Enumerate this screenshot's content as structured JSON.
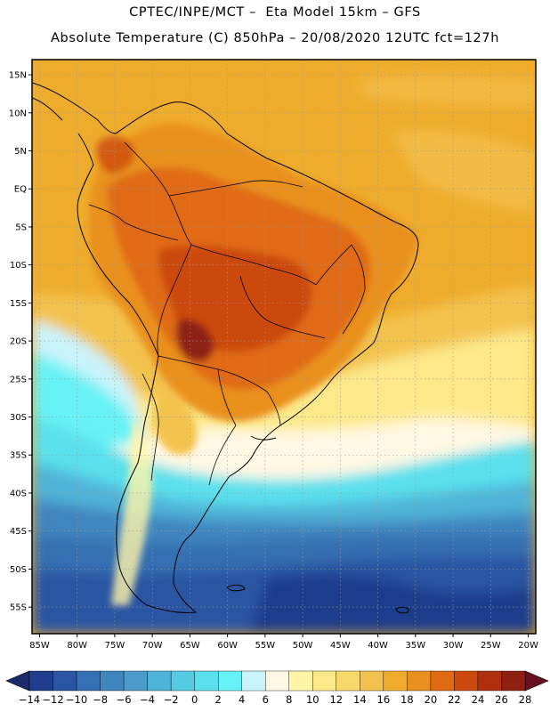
{
  "title_line1": "CPTEC/INPE/MCT –  Eta Model 15km – GFS",
  "title_line2": "Absolute Temperature (C) 850hPa – 20/08/2020 12UTC fct=127h",
  "map": {
    "lon_range": [
      -86,
      -19
    ],
    "lat_range": [
      -58.5,
      17
    ],
    "lon_ticks": [
      {
        "v": -85,
        "label": "85W"
      },
      {
        "v": -80,
        "label": "80W"
      },
      {
        "v": -75,
        "label": "75W"
      },
      {
        "v": -70,
        "label": "70W"
      },
      {
        "v": -65,
        "label": "65W"
      },
      {
        "v": -60,
        "label": "60W"
      },
      {
        "v": -55,
        "label": "55W"
      },
      {
        "v": -50,
        "label": "50W"
      },
      {
        "v": -45,
        "label": "45W"
      },
      {
        "v": -40,
        "label": "40W"
      },
      {
        "v": -35,
        "label": "35W"
      },
      {
        "v": -30,
        "label": "30W"
      },
      {
        "v": -25,
        "label": "25W"
      },
      {
        "v": -20,
        "label": "20W"
      }
    ],
    "lat_ticks": [
      {
        "v": 15,
        "label": "15N"
      },
      {
        "v": 10,
        "label": "10N"
      },
      {
        "v": 5,
        "label": "5N"
      },
      {
        "v": 0,
        "label": "EQ"
      },
      {
        "v": -5,
        "label": "5S"
      },
      {
        "v": -10,
        "label": "10S"
      },
      {
        "v": -15,
        "label": "15S"
      },
      {
        "v": -20,
        "label": "20S"
      },
      {
        "v": -25,
        "label": "25S"
      },
      {
        "v": -30,
        "label": "30S"
      },
      {
        "v": -35,
        "label": "35S"
      },
      {
        "v": -40,
        "label": "40S"
      },
      {
        "v": -45,
        "label": "45S"
      },
      {
        "v": -50,
        "label": "50S"
      },
      {
        "v": -55,
        "label": "55S"
      }
    ],
    "grid": "dotted"
  },
  "colorbar": {
    "labels": [
      "-14",
      "-12",
      "-10",
      "-8",
      "-6",
      "-4",
      "-2",
      "0",
      "2",
      "4",
      "6",
      "8",
      "10",
      "12",
      "14",
      "16",
      "18",
      "20",
      "22",
      "24",
      "26",
      "28"
    ],
    "below_color": "#1b2a6b",
    "above_color": "#6a0f1f",
    "colors": [
      "#1f3d8c",
      "#2a55a3",
      "#3470b3",
      "#3f86bf",
      "#4a9bca",
      "#4fb3d7",
      "#55cbe3",
      "#5ae0ec",
      "#66f2f6",
      "#c9f3fb",
      "#fff8e3",
      "#fff4a8",
      "#fde98a",
      "#f8d86a",
      "#f3c24e",
      "#efac2c",
      "#e9901f",
      "#e06a12",
      "#cc4a0e",
      "#ae300c",
      "#8e2012"
    ]
  }
}
